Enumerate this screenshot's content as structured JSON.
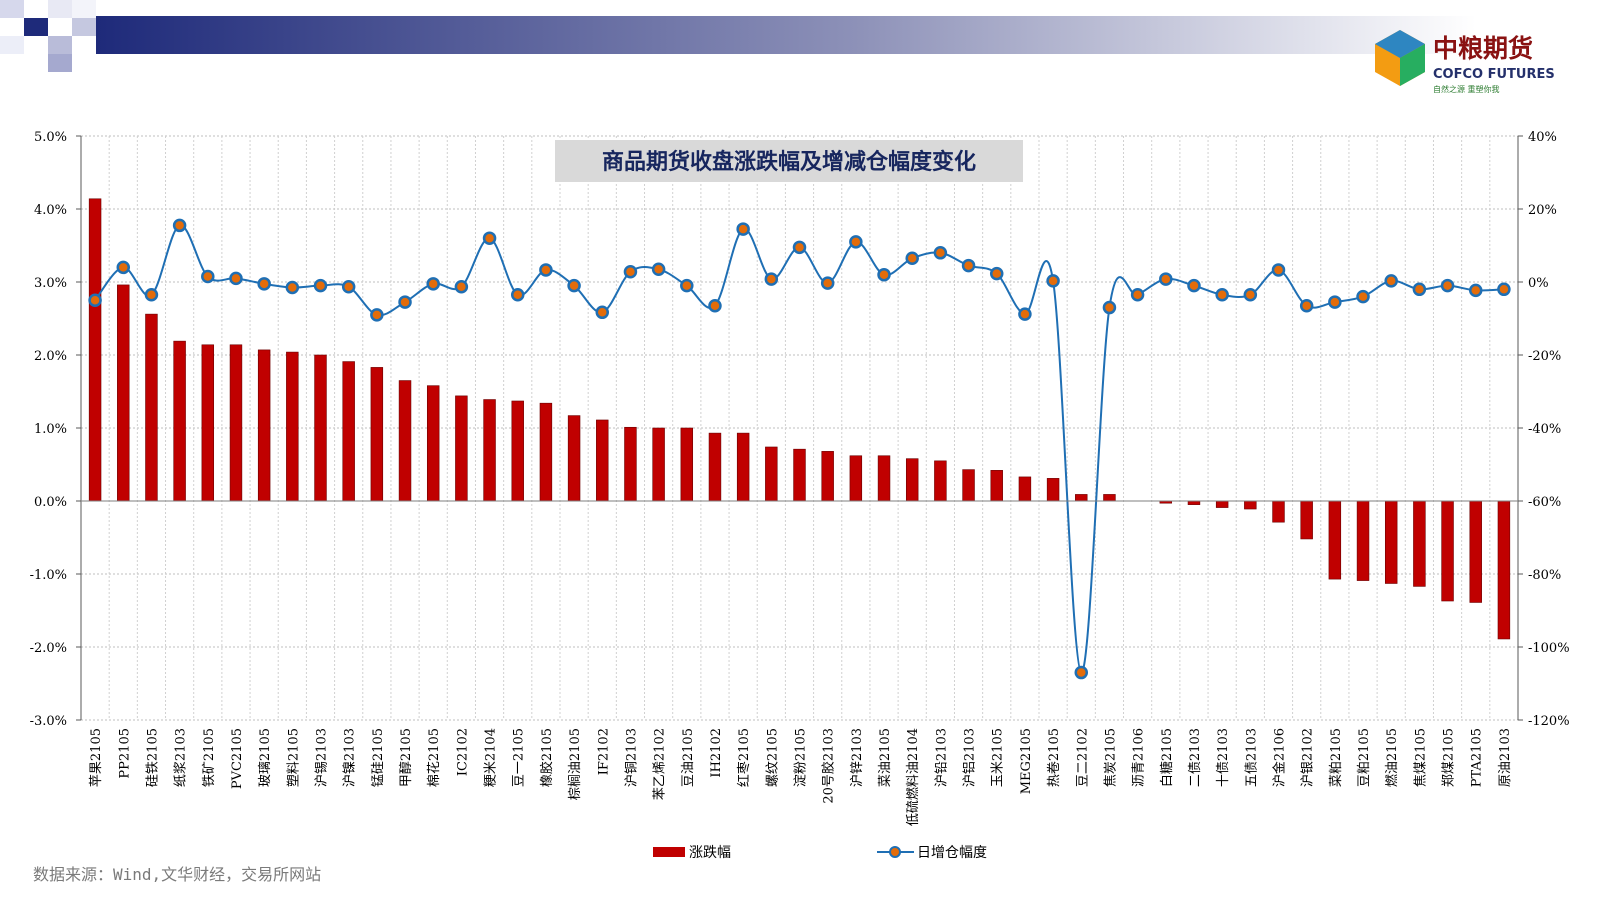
{
  "logo": {
    "cn": "中粮期货",
    "en": "COFCO FUTURES",
    "tagline": "自然之源  重塑你我"
  },
  "source": "数据来源：Wind,文华财经，交易所网站",
  "chart_data": {
    "type": "bar",
    "title": "商品期货收盘涨跌幅及增减仓幅度变化",
    "categories": [
      "苹果2105",
      "PP2105",
      "硅铁2105",
      "纸浆2103",
      "铁矿2105",
      "PVC2105",
      "玻璃2105",
      "塑料2105",
      "沪锡2103",
      "沪镍2103",
      "锰硅2105",
      "甲醇2105",
      "棉花2105",
      "IC2102",
      "粳米2104",
      "豆一2105",
      "橡胶2105",
      "棕榈油2105",
      "IF2102",
      "沪铜2103",
      "苯乙烯2102",
      "豆油2105",
      "IH2102",
      "红枣2105",
      "螺纹2105",
      "淀粉2105",
      "20号胶2103",
      "沪锌2103",
      "菜油2105",
      "低硫燃料油2104",
      "沪铅2103",
      "沪铝2103",
      "玉米2105",
      "MEG2105",
      "热卷2105",
      "豆二2102",
      "焦炭2105",
      "沥青2106",
      "白糖2105",
      "二债2103",
      "十债2103",
      "五债2103",
      "沪金2106",
      "沪银2102",
      "菜粕2105",
      "豆粕2105",
      "燃油2105",
      "焦煤2105",
      "郑煤2105",
      "PTA2105",
      "原油2103"
    ],
    "series": [
      {
        "name": "涨跌幅",
        "type": "bar",
        "axis": "left",
        "color": "#c00000",
        "values": [
          4.14,
          2.96,
          2.56,
          2.19,
          2.14,
          2.14,
          2.07,
          2.04,
          2.0,
          1.91,
          1.83,
          1.65,
          1.58,
          1.44,
          1.39,
          1.37,
          1.34,
          1.17,
          1.11,
          1.01,
          1.0,
          1.0,
          0.93,
          0.93,
          0.74,
          0.71,
          0.68,
          0.62,
          0.62,
          0.58,
          0.55,
          0.43,
          0.42,
          0.33,
          0.31,
          0.09,
          0.09,
          0.0,
          -0.03,
          -0.05,
          -0.09,
          -0.11,
          -0.29,
          -0.52,
          -1.07,
          -1.09,
          -1.13,
          -1.17,
          -1.37,
          -1.39,
          -1.89
        ]
      },
      {
        "name": "日增仓幅度",
        "type": "line",
        "axis": "right",
        "color": "#1f6fb4",
        "marker_color": "#e36c0a",
        "values": [
          -5.0,
          4.0,
          -3.5,
          15.5,
          1.5,
          1.0,
          -0.5,
          -1.5,
          -1.0,
          -1.3,
          -9.0,
          -5.5,
          -0.5,
          -1.3,
          12.0,
          -3.5,
          3.3,
          -1.0,
          -8.3,
          2.8,
          3.5,
          -1.0,
          -6.5,
          14.5,
          0.8,
          9.5,
          -0.3,
          11.0,
          2.0,
          6.5,
          8.0,
          4.5,
          2.3,
          -8.8,
          0.3,
          -107.0,
          -7.0,
          -3.5,
          0.8,
          -1.0,
          -3.5,
          -3.5,
          3.3,
          -6.5,
          -5.5,
          -4.0,
          0.3,
          -2.0,
          -1.0,
          -2.3,
          -2.0
        ]
      }
    ],
    "y_left": {
      "min": -3.0,
      "max": 5.0,
      "ticks": [
        "5.0%",
        "4.0%",
        "3.0%",
        "2.0%",
        "1.0%",
        "0.0%",
        "-1.0%",
        "-2.0%",
        "-3.0%"
      ]
    },
    "y_right": {
      "min": -120,
      "max": 40,
      "ticks": [
        "40%",
        "20%",
        "0%",
        "-20%",
        "-40%",
        "-60%",
        "-80%",
        "-100%",
        "-120%"
      ]
    },
    "legend": [
      "涨跌幅",
      "日增仓幅度"
    ],
    "legend_position": "bottom",
    "grid": true
  }
}
